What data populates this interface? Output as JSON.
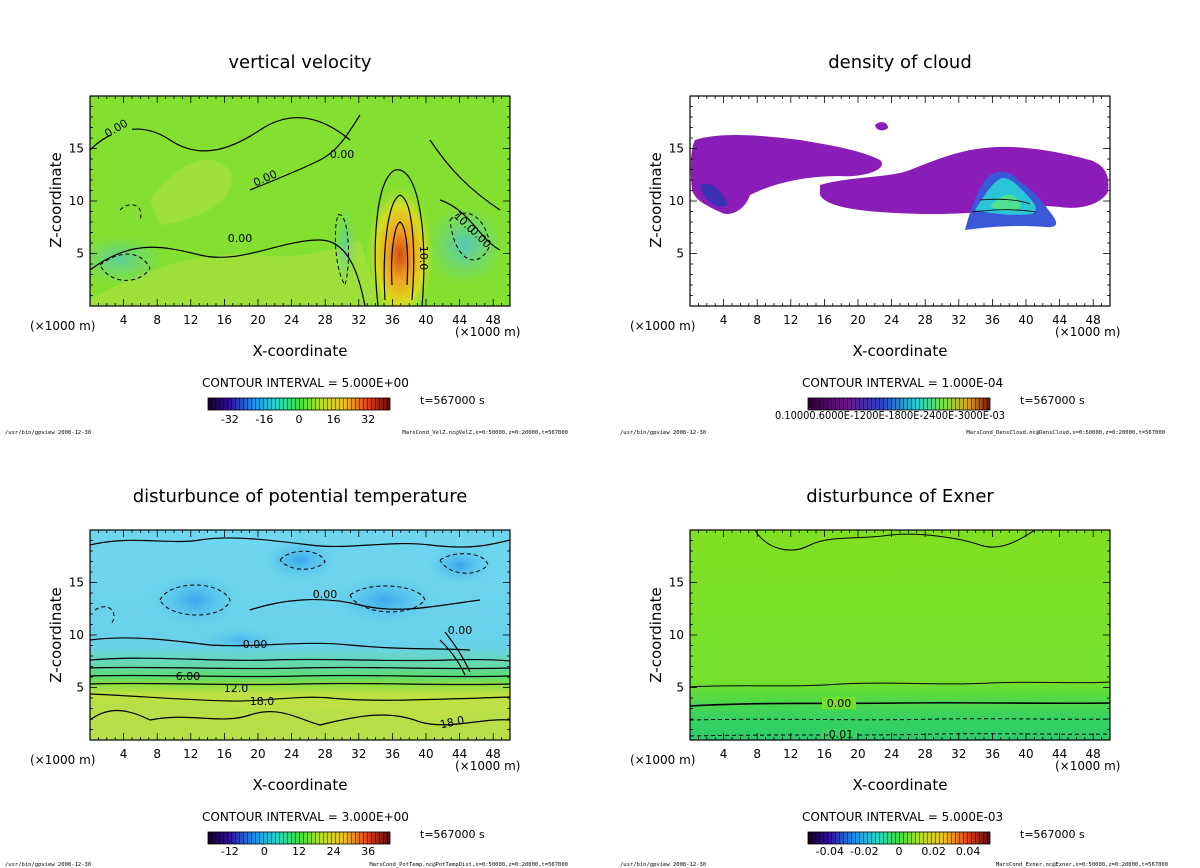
{
  "chart_data": [
    {
      "type": "heatmap",
      "title": "vertical velocity",
      "xlabel": "X-coordinate",
      "ylabel": "Z-coordinate",
      "x_unit": "(×1000 m)",
      "x_ticks": [
        4,
        8,
        12,
        16,
        20,
        24,
        28,
        32,
        36,
        40,
        44,
        48
      ],
      "y_ticks": [
        5,
        10,
        15
      ],
      "xlim": [
        0,
        50
      ],
      "ylim": [
        0,
        20
      ],
      "contour_interval_label": "CONTOUR INTERVAL = 5.000E+00",
      "time_label": "t=567000 s",
      "colorbar_ticks": [
        "-32",
        "-16",
        "0",
        "16",
        "32"
      ],
      "contour_labels": [
        "0.00",
        "0.00",
        "0.00",
        "0.00",
        "10.0",
        "10.0",
        "0.00"
      ],
      "footer_left": "/usr/bin/gpview  2008-12-30",
      "footer_right": "MarsCond_VelZ.nc@VelZ,x=0:50000,z=0:20000,t=567000"
    },
    {
      "type": "heatmap",
      "title": "density of cloud",
      "xlabel": "X-coordinate",
      "ylabel": "Z-coordinate",
      "x_unit": "(×1000 m)",
      "x_ticks": [
        4,
        8,
        12,
        16,
        20,
        24,
        28,
        32,
        36,
        40,
        44,
        48
      ],
      "y_ticks": [
        5,
        10,
        15
      ],
      "xlim": [
        0,
        50
      ],
      "ylim": [
        0,
        20
      ],
      "contour_interval_label": "CONTOUR INTERVAL = 1.000E-04",
      "time_label": "t=567000 s",
      "colorbar_ticks": [
        "0.10000.6000E-1200E-1800E-2400E-3000E-03"
      ],
      "contour_labels": [],
      "footer_left": "/usr/bin/gpview  2008-12-30",
      "footer_right": "MarsCond_DensCloud.nc@DensCloud,x=0:50000,z=0:20000,t=567000"
    },
    {
      "type": "heatmap",
      "title": "disturbunce of potential temperature",
      "xlabel": "X-coordinate",
      "ylabel": "Z-coordinate",
      "x_unit": "(×1000 m)",
      "x_ticks": [
        4,
        8,
        12,
        16,
        20,
        24,
        28,
        32,
        36,
        40,
        44,
        48
      ],
      "y_ticks": [
        5,
        10,
        15
      ],
      "xlim": [
        0,
        50
      ],
      "ylim": [
        0,
        20
      ],
      "contour_interval_label": "CONTOUR INTERVAL = 3.000E+00",
      "time_label": "t=567000 s",
      "colorbar_ticks": [
        "-12",
        "0",
        "12",
        "24",
        "36"
      ],
      "contour_labels": [
        "0.00",
        "0.00",
        "0.00",
        "6.00",
        "12.0",
        "18.0",
        "18.0"
      ],
      "footer_left": "/usr/bin/gpview  2008-12-30",
      "footer_right": "MarsCond_PotTemp.nc@PotTempDist,x=0:50000,z=0:20000,t=567000"
    },
    {
      "type": "heatmap",
      "title": "disturbunce of Exner",
      "xlabel": "X-coordinate",
      "ylabel": "Z-coordinate",
      "x_unit": "(×1000 m)",
      "x_ticks": [
        4,
        8,
        12,
        16,
        20,
        24,
        28,
        32,
        36,
        40,
        44,
        48
      ],
      "y_ticks": [
        5,
        10,
        15
      ],
      "xlim": [
        0,
        50
      ],
      "ylim": [
        0,
        20
      ],
      "contour_interval_label": "CONTOUR INTERVAL = 5.000E-03",
      "time_label": "t=567000 s",
      "colorbar_ticks": [
        "-0.04",
        "-0.02",
        "0",
        "0.02",
        "0.04"
      ],
      "contour_labels": [
        "0.00",
        "-0.01"
      ],
      "footer_left": "/usr/bin/gpview  2008-12-30",
      "footer_right": "MarsCond_Exner.nc@Exner,x=0:50000,z=0:20000,t=567000"
    }
  ]
}
